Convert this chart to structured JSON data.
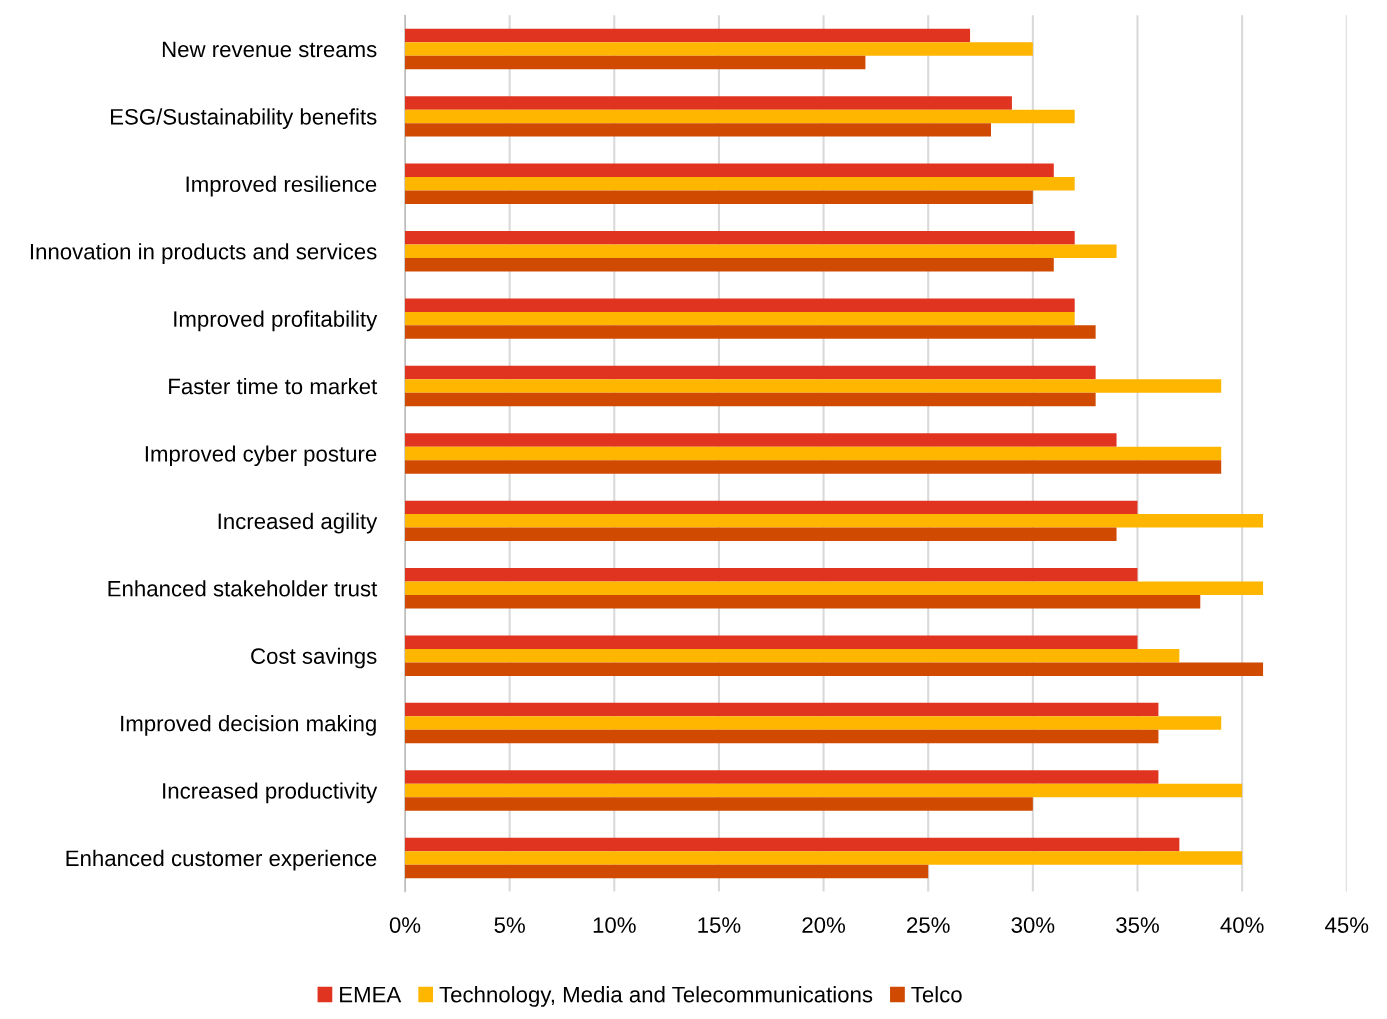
{
  "chart_data": {
    "type": "bar",
    "orientation": "horizontal",
    "categories": [
      "New revenue streams",
      "ESG/Sustainability benefits",
      "Improved resilience",
      "Innovation in products and services",
      "Improved profitability",
      "Faster time to market",
      "Improved cyber posture",
      "Increased agility",
      "Enhanced stakeholder trust",
      "Cost savings",
      "Improved decision making",
      "Increased productivity",
      "Enhanced customer experience"
    ],
    "series": [
      {
        "name": "EMEA",
        "color": "#e03420",
        "values": [
          27,
          29,
          31,
          32,
          32,
          33,
          34,
          35,
          35,
          35,
          36,
          36,
          37
        ]
      },
      {
        "name": "Technology, Media and Telecommunications",
        "color": "#ffb600",
        "values": [
          30,
          32,
          32,
          34,
          32,
          39,
          39,
          41,
          41,
          37,
          39,
          40,
          40
        ]
      },
      {
        "name": "Telco",
        "color": "#d04a02",
        "values": [
          22,
          28,
          30,
          31,
          33,
          33,
          39,
          34,
          38,
          41,
          36,
          30,
          25
        ]
      }
    ],
    "xlim": [
      0,
      45
    ],
    "xticks": [
      {
        "value": 0,
        "label": "0%"
      },
      {
        "value": 5,
        "label": "5%"
      },
      {
        "value": 10,
        "label": "10%"
      },
      {
        "value": 15,
        "label": "15%"
      },
      {
        "value": 20,
        "label": "20%"
      },
      {
        "value": 25,
        "label": "25%"
      },
      {
        "value": 30,
        "label": "30%"
      },
      {
        "value": 35,
        "label": "35%"
      },
      {
        "value": 40,
        "label": "40%"
      },
      {
        "value": 45,
        "label": "45%"
      }
    ],
    "grid": "x",
    "legend": "bottom"
  }
}
